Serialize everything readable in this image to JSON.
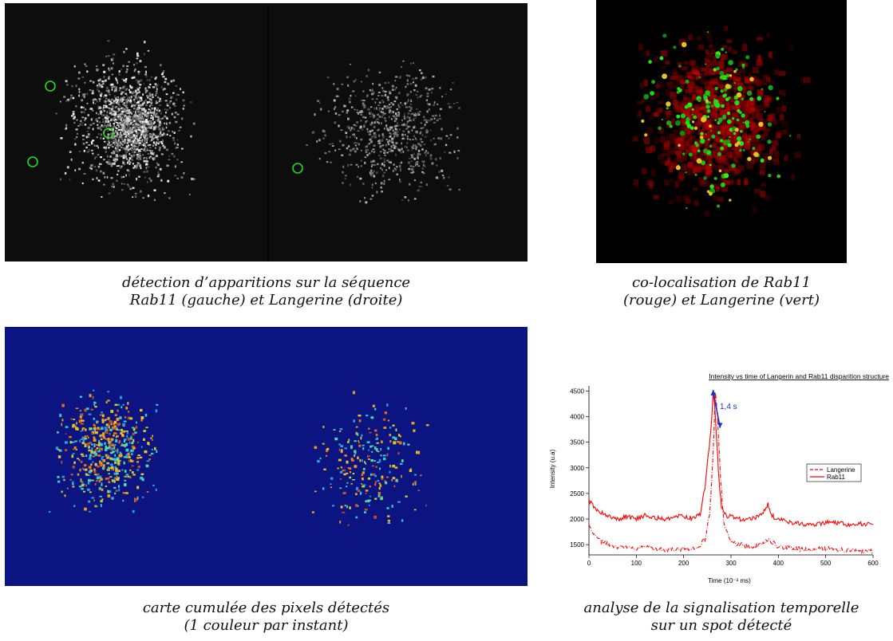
{
  "figures": {
    "detection": {
      "caption_line1": "détection d’apparitions sur la séquence",
      "caption_line2": "Rab11 (gauche) et Langerine (droite)"
    },
    "colocalisation": {
      "caption_line1": "co-localisation de Rab11",
      "caption_line2": "(rouge) et Langerine (vert)"
    },
    "cumulative_map": {
      "caption_line1": "carte cumulée des pixels détectés",
      "caption_line2": "(1 couleur par instant)"
    },
    "temporal_analysis": {
      "caption_line1": "analyse de la signalisation temporelle",
      "caption_line2": "sur un spot détecté"
    }
  },
  "colors": {
    "microscopy_bg": "#0d0d0d",
    "map_bg": "#0b1480",
    "detection_ring": "#22dd22",
    "rab11": "#ff0000",
    "langerine": "#ff0000",
    "arrow": "#1a2fcc"
  },
  "chart_data": {
    "type": "line",
    "title": "Intensity vs time of Langerin and Rab11 disparition structure",
    "xlabel": "Time (10⁻² ms)",
    "ylabel": "Intensity (u.a)",
    "xlim": [
      0,
      600
    ],
    "ylim": [
      1300,
      4600
    ],
    "xticks": [
      "0",
      "100",
      "200",
      "300",
      "400",
      "500",
      "600"
    ],
    "yticks": [
      "1500",
      "2000",
      "2500",
      "3000",
      "3500",
      "4000",
      "4500"
    ],
    "annotation": "1,4 s",
    "legend_position": "right",
    "series": [
      {
        "name": "Rab11",
        "style": "solid",
        "x": [
          0,
          10,
          20,
          40,
          60,
          80,
          100,
          120,
          140,
          160,
          180,
          200,
          220,
          235,
          245,
          252,
          258,
          262,
          266,
          270,
          275,
          280,
          290,
          300,
          320,
          340,
          360,
          370,
          378,
          385,
          395,
          420,
          450,
          480,
          510,
          540,
          570,
          600
        ],
        "y": [
          2350,
          2250,
          2150,
          2050,
          2000,
          2050,
          2000,
          2080,
          2020,
          2000,
          2050,
          2050,
          2000,
          2100,
          2600,
          3250,
          3800,
          4450,
          4200,
          3500,
          2700,
          2250,
          2050,
          2050,
          2000,
          2000,
          2050,
          2150,
          2300,
          2100,
          2000,
          1950,
          1900,
          1900,
          1950,
          1900,
          1900,
          1900
        ]
      },
      {
        "name": "Langerine",
        "style": "dashed",
        "x": [
          0,
          10,
          20,
          40,
          60,
          80,
          100,
          120,
          150,
          180,
          210,
          230,
          245,
          255,
          262,
          267,
          272,
          278,
          285,
          300,
          320,
          350,
          380,
          400,
          430,
          470,
          500,
          540,
          580,
          600
        ],
        "y": [
          1850,
          1700,
          1600,
          1500,
          1450,
          1450,
          1420,
          1450,
          1400,
          1400,
          1420,
          1450,
          1600,
          2100,
          3200,
          4500,
          3900,
          2800,
          1900,
          1550,
          1500,
          1450,
          1600,
          1450,
          1430,
          1400,
          1420,
          1400,
          1380,
          1380
        ]
      }
    ]
  }
}
